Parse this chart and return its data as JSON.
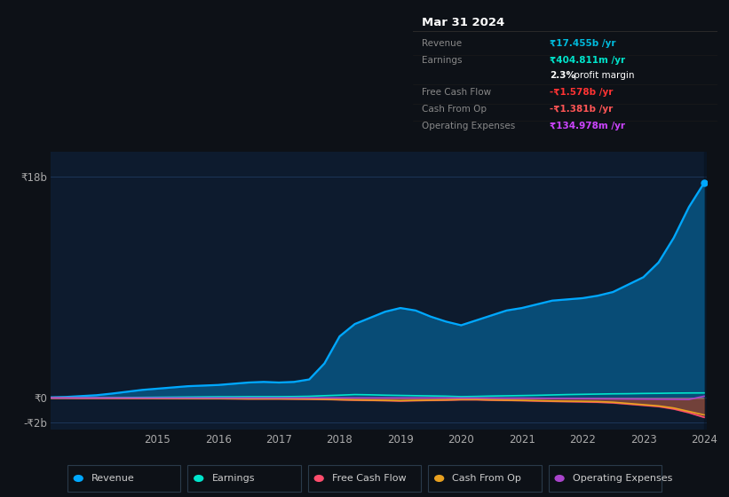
{
  "bg_color": "#0d1117",
  "plot_bg_color": "#0d1b2e",
  "grid_color": "#1e3a5f",
  "years": [
    2013.25,
    2013.5,
    2013.75,
    2014.0,
    2014.25,
    2014.5,
    2014.75,
    2015.0,
    2015.25,
    2015.5,
    2015.75,
    2016.0,
    2016.25,
    2016.5,
    2016.75,
    2017.0,
    2017.25,
    2017.5,
    2017.75,
    2018.0,
    2018.25,
    2018.5,
    2018.75,
    2019.0,
    2019.25,
    2019.5,
    2019.75,
    2020.0,
    2020.25,
    2020.5,
    2020.75,
    2021.0,
    2021.25,
    2021.5,
    2021.75,
    2022.0,
    2022.25,
    2022.5,
    2022.75,
    2023.0,
    2023.25,
    2023.5,
    2023.75,
    2024.0
  ],
  "revenue": [
    0.05,
    0.08,
    0.15,
    0.22,
    0.35,
    0.5,
    0.65,
    0.75,
    0.85,
    0.95,
    1.0,
    1.05,
    1.15,
    1.25,
    1.3,
    1.25,
    1.3,
    1.5,
    2.8,
    5.0,
    6.0,
    6.5,
    7.0,
    7.3,
    7.1,
    6.6,
    6.2,
    5.9,
    6.3,
    6.7,
    7.1,
    7.3,
    7.6,
    7.9,
    8.0,
    8.1,
    8.3,
    8.6,
    9.2,
    9.8,
    11.0,
    13.0,
    15.5,
    17.455
  ],
  "earnings": [
    0.0,
    0.0,
    0.01,
    0.01,
    0.02,
    0.03,
    0.04,
    0.05,
    0.06,
    0.07,
    0.08,
    0.09,
    0.09,
    0.1,
    0.1,
    0.1,
    0.11,
    0.13,
    0.18,
    0.22,
    0.27,
    0.25,
    0.22,
    0.2,
    0.18,
    0.16,
    0.14,
    0.1,
    0.12,
    0.15,
    0.17,
    0.19,
    0.21,
    0.24,
    0.27,
    0.29,
    0.31,
    0.33,
    0.34,
    0.36,
    0.37,
    0.39,
    0.4,
    0.405
  ],
  "free_cash_flow": [
    -0.01,
    -0.01,
    -0.02,
    -0.02,
    -0.03,
    -0.03,
    -0.04,
    -0.04,
    -0.05,
    -0.05,
    -0.06,
    -0.06,
    -0.07,
    -0.08,
    -0.08,
    -0.08,
    -0.09,
    -0.1,
    -0.12,
    -0.15,
    -0.18,
    -0.2,
    -0.22,
    -0.25,
    -0.22,
    -0.2,
    -0.18,
    -0.15,
    -0.15,
    -0.18,
    -0.2,
    -0.22,
    -0.25,
    -0.28,
    -0.3,
    -0.32,
    -0.35,
    -0.4,
    -0.5,
    -0.6,
    -0.7,
    -0.9,
    -1.2,
    -1.578
  ],
  "cash_from_op": [
    -0.01,
    -0.01,
    -0.02,
    -0.02,
    -0.02,
    -0.03,
    -0.03,
    -0.04,
    -0.04,
    -0.05,
    -0.05,
    -0.05,
    -0.06,
    -0.07,
    -0.07,
    -0.07,
    -0.08,
    -0.09,
    -0.11,
    -0.14,
    -0.16,
    -0.18,
    -0.2,
    -0.22,
    -0.2,
    -0.18,
    -0.16,
    -0.13,
    -0.13,
    -0.16,
    -0.18,
    -0.2,
    -0.22,
    -0.25,
    -0.27,
    -0.28,
    -0.3,
    -0.35,
    -0.45,
    -0.55,
    -0.65,
    -0.82,
    -1.1,
    -1.381
  ],
  "operating_expenses": [
    0.0,
    0.0,
    0.0,
    0.0,
    0.0,
    0.0,
    0.0,
    0.0,
    0.0,
    0.0,
    0.0,
    0.0,
    0.0,
    0.0,
    0.0,
    0.0,
    0.0,
    0.0,
    0.0,
    0.0,
    0.0,
    0.0,
    0.0,
    0.0,
    0.0,
    0.0,
    0.0,
    -0.01,
    -0.01,
    -0.01,
    -0.02,
    -0.02,
    -0.03,
    -0.04,
    -0.05,
    -0.06,
    -0.07,
    -0.08,
    -0.09,
    -0.1,
    -0.11,
    -0.12,
    -0.13,
    0.135
  ],
  "revenue_color": "#00a8ff",
  "earnings_color": "#00e5cc",
  "free_cash_flow_color": "#ff4d6d",
  "cash_from_op_color": "#e8a020",
  "operating_expenses_color": "#aa44cc",
  "ylim": [
    -2.6,
    20.0
  ],
  "yticks": [
    18,
    0,
    -2
  ],
  "ytick_labels": [
    "₹18b",
    "₹0",
    "-₹2b"
  ],
  "xtick_labels": [
    "2015",
    "2016",
    "2017",
    "2018",
    "2019",
    "2020",
    "2021",
    "2022",
    "2023",
    "2024"
  ],
  "xtick_positions": [
    2015,
    2016,
    2017,
    2018,
    2019,
    2020,
    2021,
    2022,
    2023,
    2024
  ],
  "legend": [
    {
      "label": "Revenue",
      "color": "#00a8ff"
    },
    {
      "label": "Earnings",
      "color": "#00e5cc"
    },
    {
      "label": "Free Cash Flow",
      "color": "#ff4d6d"
    },
    {
      "label": "Cash From Op",
      "color": "#e8a020"
    },
    {
      "label": "Operating Expenses",
      "color": "#aa44cc"
    }
  ],
  "info_box": {
    "title": "Mar 31 2024",
    "bg_color": "#080d12",
    "border_color": "#2a2a2a",
    "title_color": "#ffffff",
    "label_color": "#888888",
    "rows": [
      {
        "label": "Revenue",
        "value": "₹17.455b /yr",
        "value_color": "#00bbdd",
        "extra": null
      },
      {
        "label": "Earnings",
        "value": "₹404.811m /yr",
        "value_color": "#00e5cc",
        "extra": "2.3% profit margin"
      },
      {
        "label": "Free Cash Flow",
        "value": "-₹1.578b /yr",
        "value_color": "#ff3333",
        "extra": null
      },
      {
        "label": "Cash From Op",
        "value": "-₹1.381b /yr",
        "value_color": "#ff5555",
        "extra": null
      },
      {
        "label": "Operating Expenses",
        "value": "₹134.978m /yr",
        "value_color": "#cc44ff",
        "extra": null
      }
    ]
  }
}
